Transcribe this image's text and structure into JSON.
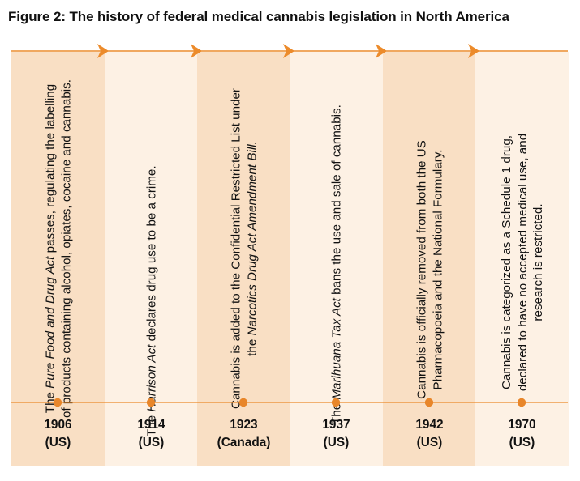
{
  "figure": {
    "title": "Figure 2: The history of federal medical cannabis legislation in North America"
  },
  "colors": {
    "accent": "#ec8b2b",
    "shaded_column": "#f9dfc4",
    "light_column": "#fdf1e4",
    "dot": "#e8862a"
  },
  "timeline": [
    {
      "year": "1906",
      "region": "(US)",
      "shade": "dark",
      "text_before": "The ",
      "text_em": "Pure Food and Drug Act",
      "text_after": " passes, regulating the labelling of products containing alcohol, opiates, cocaine and cannabis."
    },
    {
      "year": "1914",
      "region": "(US)",
      "shade": "light",
      "text_before": "The ",
      "text_em": "Harrison Act",
      "text_after": " declares drug use to be a crime."
    },
    {
      "year": "1923",
      "region": "(Canada)",
      "shade": "dark",
      "text_before": "Cannabis is added to the Confidential Restricted List under the ",
      "text_em": "Narcotics Drug Act Amendment Bill.",
      "text_after": ""
    },
    {
      "year": "1937",
      "region": "(US)",
      "shade": "light",
      "text_before": "The ",
      "text_em": "Marihuana Tax Act",
      "text_after": " bans the use and sale of cannabis."
    },
    {
      "year": "1942",
      "region": "(US)",
      "shade": "dark",
      "text_before": "Cannabis is officially removed from both the US Pharmacopoeia and the National Formulary.",
      "text_em": "",
      "text_after": ""
    },
    {
      "year": "1970",
      "region": "(US)",
      "shade": "light",
      "text_before": "Cannabis is categorized as a Schedule 1 drug, declared to have no accepted medical use, and research is restricted.",
      "text_em": "",
      "text_after": ""
    }
  ]
}
